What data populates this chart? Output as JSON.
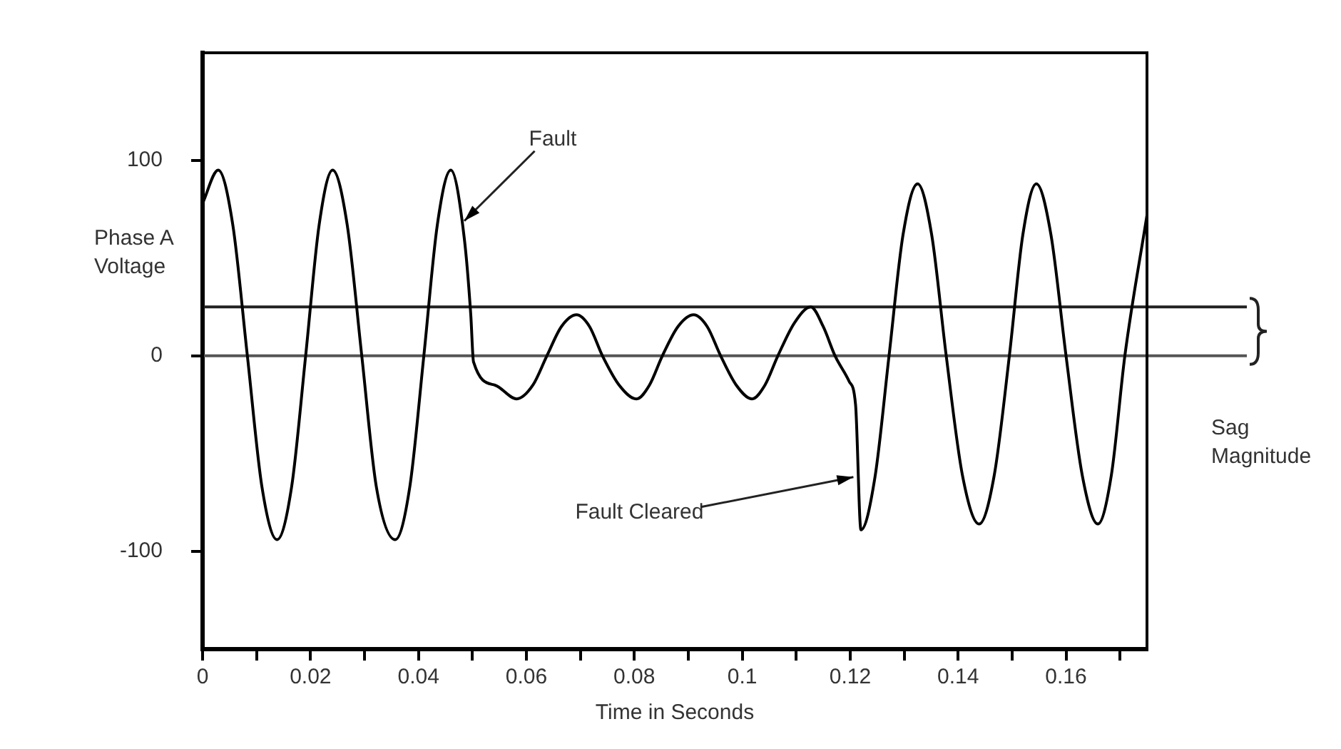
{
  "chart_data": {
    "type": "line",
    "xlabel": "Time in Seconds",
    "ylabel": "Phase A Voltage",
    "x": [
      0,
      0.0029,
      0.0056,
      0.0083,
      0.011,
      0.0138,
      0.0165,
      0.0191,
      0.0216,
      0.0241,
      0.0268,
      0.0295,
      0.0322,
      0.0357,
      0.0384,
      0.041,
      0.0435,
      0.046,
      0.0485,
      0.0497,
      0.0502,
      0.0542,
      0.0582,
      0.0612,
      0.0638,
      0.0665,
      0.0693,
      0.0717,
      0.0741,
      0.0772,
      0.0804,
      0.0828,
      0.0852,
      0.0881,
      0.091,
      0.0935,
      0.096,
      0.0989,
      0.1018,
      0.1042,
      0.1066,
      0.1097,
      0.1127,
      0.115,
      0.1172,
      0.1198,
      0.121,
      0.122,
      0.1246,
      0.1272,
      0.1298,
      0.1325,
      0.1351,
      0.1378,
      0.1408,
      0.1439,
      0.1467,
      0.1495,
      0.152,
      0.1545,
      0.1572,
      0.16,
      0.163,
      0.1659,
      0.1684,
      0.1709,
      0.175
    ],
    "series": [
      {
        "color": "#000000",
        "values": [
          78,
          95,
          67,
          0,
          -67,
          -94,
          -67,
          0,
          67,
          95,
          67,
          0,
          -67,
          -94,
          -67,
          0,
          67,
          95,
          60,
          21,
          -3,
          -15,
          -22,
          -15,
          0,
          15,
          21,
          15,
          0,
          -15,
          -22,
          -15,
          0,
          15,
          21,
          15,
          0,
          -15,
          -22,
          -15,
          0,
          17,
          25,
          15,
          0,
          -13,
          -25,
          -89,
          -62,
          0,
          62,
          88,
          62,
          0,
          -61,
          -86,
          -61,
          0,
          62,
          88,
          62,
          0,
          -61,
          -86,
          -61,
          0,
          72
        ]
      }
    ],
    "xlim": [
      0,
      0.175
    ],
    "ylim": [
      -150,
      155
    ],
    "xticks": [
      0,
      {
        "value": 0.01,
        "label": null
      },
      0.02,
      {
        "value": 0.03,
        "label": null
      },
      0.04,
      {
        "value": 0.05,
        "label": null
      },
      0.06,
      {
        "value": 0.07,
        "label": null
      },
      0.08,
      {
        "value": 0.09,
        "label": null
      },
      0.1,
      {
        "value": 0.11,
        "label": null
      },
      0.12,
      {
        "value": 0.13,
        "label": null
      },
      0.14,
      {
        "value": 0.15,
        "label": null
      },
      0.16,
      {
        "value": 0.17,
        "label": null
      }
    ],
    "yticks": [
      -100,
      0,
      100
    ],
    "ref_lines": [
      {
        "axis": "y",
        "value": 0,
        "color": "#555555"
      },
      {
        "axis": "y",
        "value": 25,
        "label": "Sag Magnitude",
        "color": "#222222"
      }
    ],
    "annotations": [
      {
        "text": "Fault",
        "x": 0.0485,
        "y": 69
      },
      {
        "text": "Fault Cleared",
        "x": 0.1206,
        "y": -62
      }
    ],
    "grid": false,
    "legend": false,
    "marker": "none",
    "line_style": "solid"
  }
}
